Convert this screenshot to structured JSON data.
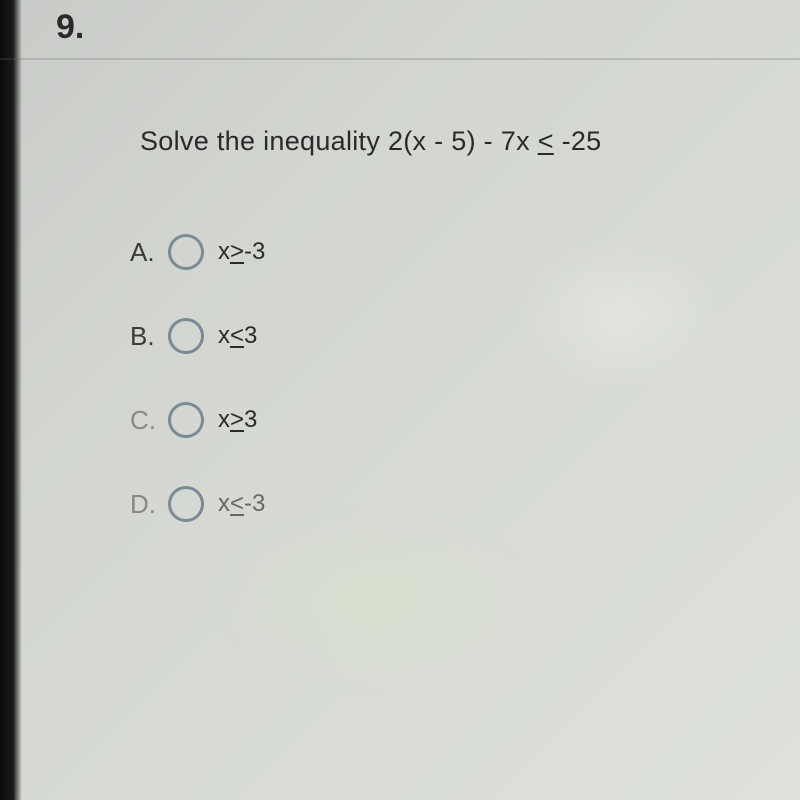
{
  "question": {
    "number": "9.",
    "prompt_prefix": "Solve the inequality 2(x - 5) - 7x ",
    "prompt_rel": "<",
    "prompt_suffix": " -25"
  },
  "options": [
    {
      "letter": "A.",
      "expr_prefix": "x",
      "expr_rel": ">",
      "expr_suffix": "-3",
      "dim": false
    },
    {
      "letter": "B.",
      "expr_prefix": "x",
      "expr_rel": "<",
      "expr_suffix": "3",
      "dim": false
    },
    {
      "letter": "C.",
      "expr_prefix": "x",
      "expr_rel": ">",
      "expr_suffix": "3",
      "dim": true
    },
    {
      "letter": "D.",
      "expr_prefix": "x",
      "expr_rel": "<",
      "expr_suffix": "-3",
      "dim": true
    }
  ],
  "styles": {
    "radio_border_color": "#7a8b95",
    "text_color": "#2a2a2a",
    "dim_color": "#888",
    "background_gradient": "linear-gradient(135deg, #c8cbc7 0%, #d2d5d0 30%, #d8dbd6 60%, #dee1db 100%)"
  }
}
